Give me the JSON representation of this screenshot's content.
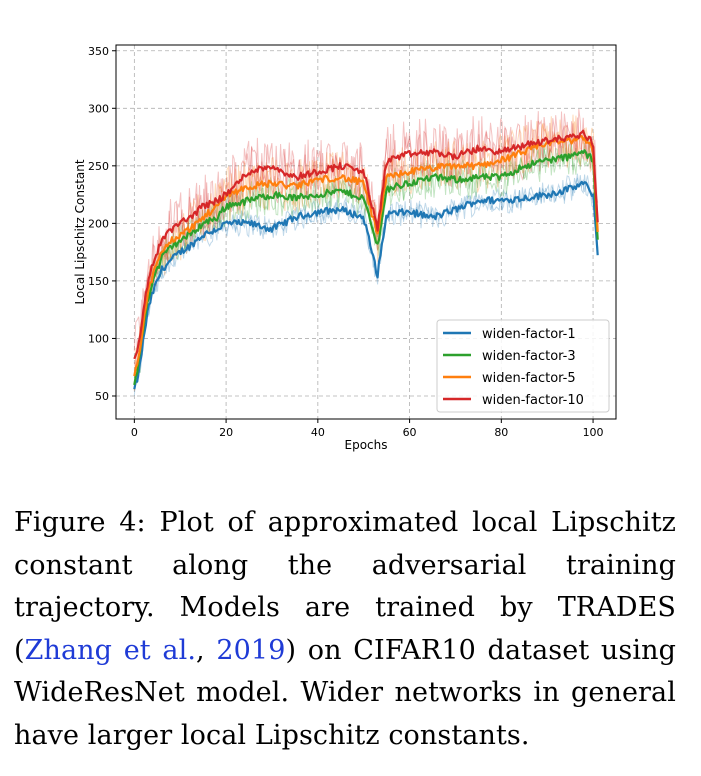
{
  "chart_data": {
    "type": "line",
    "title": "",
    "xlabel": "Epochs",
    "ylabel": "Local Lipschitz Constant",
    "xlim": [
      -4,
      105
    ],
    "ylim": [
      30,
      355
    ],
    "xticks": [
      0,
      20,
      40,
      60,
      80,
      100
    ],
    "yticks": [
      50,
      100,
      150,
      200,
      250,
      300,
      350
    ],
    "grid": true,
    "legend_position": "lower-right",
    "series": [
      {
        "name": "widen-factor-1",
        "color": "#1f77b4",
        "x": [
          0,
          1,
          2,
          3,
          4,
          5,
          6,
          8,
          10,
          12,
          15,
          18,
          20,
          25,
          30,
          35,
          40,
          45,
          50,
          53,
          55,
          60,
          65,
          70,
          75,
          80,
          85,
          90,
          95,
          98,
          100,
          101
        ],
        "y": [
          55,
          70,
          100,
          125,
          140,
          150,
          160,
          168,
          175,
          180,
          190,
          195,
          200,
          200,
          195,
          205,
          210,
          212,
          205,
          155,
          208,
          210,
          205,
          212,
          220,
          220,
          222,
          225,
          230,
          235,
          225,
          175
        ]
      },
      {
        "name": "widen-factor-3",
        "color": "#2ca02c",
        "x": [
          0,
          1,
          2,
          3,
          4,
          5,
          6,
          8,
          10,
          12,
          15,
          18,
          20,
          25,
          30,
          35,
          40,
          45,
          50,
          53,
          55,
          60,
          65,
          70,
          75,
          80,
          85,
          90,
          95,
          98,
          100,
          101
        ],
        "y": [
          60,
          80,
          110,
          135,
          150,
          160,
          170,
          180,
          185,
          190,
          200,
          205,
          215,
          220,
          225,
          222,
          225,
          228,
          222,
          180,
          230,
          235,
          240,
          238,
          240,
          240,
          250,
          255,
          258,
          262,
          255,
          185
        ]
      },
      {
        "name": "widen-factor-5",
        "color": "#ff7f0e",
        "x": [
          0,
          1,
          2,
          3,
          4,
          5,
          6,
          8,
          10,
          12,
          15,
          18,
          20,
          25,
          30,
          35,
          40,
          45,
          50,
          53,
          55,
          60,
          65,
          70,
          75,
          80,
          85,
          90,
          95,
          98,
          100,
          101
        ],
        "y": [
          70,
          85,
          115,
          140,
          155,
          165,
          175,
          185,
          190,
          195,
          205,
          215,
          225,
          232,
          235,
          232,
          238,
          240,
          235,
          190,
          240,
          245,
          248,
          250,
          250,
          255,
          262,
          270,
          272,
          275,
          265,
          195
        ]
      },
      {
        "name": "widen-factor-10",
        "color": "#d62728",
        "x": [
          0,
          1,
          2,
          3,
          4,
          5,
          6,
          8,
          10,
          12,
          15,
          18,
          20,
          25,
          30,
          35,
          40,
          45,
          50,
          53,
          55,
          60,
          65,
          70,
          75,
          80,
          85,
          90,
          95,
          98,
          100,
          101
        ],
        "y": [
          80,
          95,
          125,
          150,
          165,
          175,
          185,
          195,
          200,
          205,
          215,
          220,
          225,
          245,
          250,
          240,
          245,
          250,
          245,
          195,
          255,
          260,
          262,
          258,
          265,
          262,
          268,
          272,
          275,
          278,
          270,
          200
        ]
      }
    ]
  },
  "caption": {
    "prefix": "Figure 4:  Plot of approximated local Lipschitz constant along the adversarial training trajectory.  Models are trained by TRADES (",
    "cite_author": "Zhang et al.",
    "cite_sep": ", ",
    "cite_year": "2019",
    "suffix": ") on CIFAR10 dataset using WideResNet model.  Wider networks in general have larger local Lipschitz constants."
  }
}
